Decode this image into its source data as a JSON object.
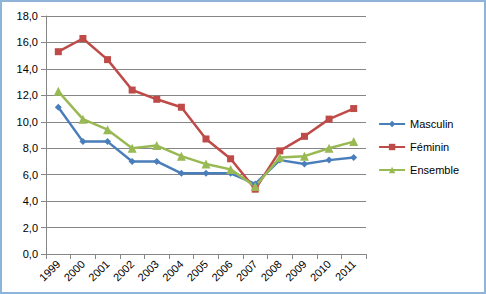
{
  "chart_data": {
    "type": "line",
    "categories": [
      "1999",
      "2000",
      "2001",
      "2002",
      "2003",
      "2004",
      "2005",
      "2006",
      "2007",
      "2008",
      "2009",
      "2010",
      "2011"
    ],
    "series": [
      {
        "name": "Masculin",
        "color": "#4a7ebb",
        "marker": "diamond",
        "values": [
          11.1,
          8.5,
          8.5,
          7.0,
          7.0,
          6.1,
          6.1,
          6.1,
          5.3,
          7.1,
          6.8,
          7.1,
          7.3
        ]
      },
      {
        "name": "Féminin",
        "color": "#be4b48",
        "marker": "square",
        "values": [
          15.3,
          16.3,
          14.7,
          12.4,
          11.7,
          11.1,
          8.7,
          7.2,
          4.9,
          7.8,
          8.9,
          10.2,
          11.0
        ]
      },
      {
        "name": "Ensemble",
        "color": "#98b954",
        "marker": "triangle",
        "values": [
          12.3,
          10.2,
          9.4,
          8.0,
          8.2,
          7.4,
          6.8,
          6.4,
          5.1,
          7.3,
          7.4,
          8.0,
          8.5
        ]
      }
    ],
    "ylim": [
      0,
      18
    ],
    "yticks": [
      {
        "value": 0,
        "label": "0,0"
      },
      {
        "value": 2,
        "label": "2,0"
      },
      {
        "value": 4,
        "label": "4,0"
      },
      {
        "value": 6,
        "label": "6,0"
      },
      {
        "value": 8,
        "label": "8,0"
      },
      {
        "value": 10,
        "label": "10,0"
      },
      {
        "value": 12,
        "label": "12,0"
      },
      {
        "value": 14,
        "label": "14,0"
      },
      {
        "value": 16,
        "label": "16,0"
      },
      {
        "value": 18,
        "label": "18,0"
      }
    ],
    "grid": true,
    "legend": "right"
  }
}
